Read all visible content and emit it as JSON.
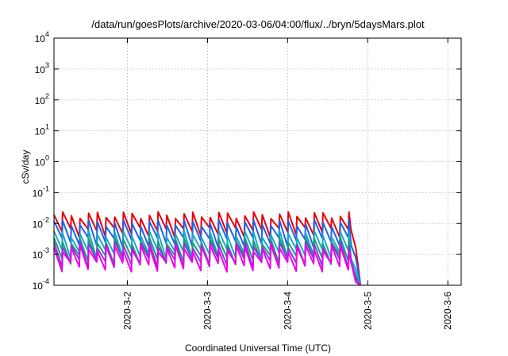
{
  "chart_data": {
    "type": "line",
    "title": "/data/run/goesPlots/archive/2020-03-06/04:00/flux/../bryn/5daysMars.plot",
    "xlabel": "Coordinated Universal Time (UTC)",
    "ylabel": "cSv/day",
    "yscale": "log",
    "ylim": [
      0.0001,
      10000
    ],
    "xlim": [
      "2020-03-01T02:00",
      "2020-03-06T04:00"
    ],
    "grid": true,
    "legend": "none",
    "x_ticks": [
      {
        "date": "2020-03-02",
        "label": "2020-3-2"
      },
      {
        "date": "2020-03-03",
        "label": "2020-3-3"
      },
      {
        "date": "2020-03-04",
        "label": "2020-3-4"
      },
      {
        "date": "2020-03-05",
        "label": "2020-3-5"
      },
      {
        "date": "2020-03-06",
        "label": "2020-3-6"
      }
    ],
    "y_ticks": [
      {
        "base": "10",
        "exp": "-4"
      },
      {
        "base": "10",
        "exp": "-3"
      },
      {
        "base": "10",
        "exp": "-2"
      },
      {
        "base": "10",
        "exp": "-1"
      },
      {
        "base": "10",
        "exp": "0"
      },
      {
        "base": "10",
        "exp": "1"
      },
      {
        "base": "10",
        "exp": "2"
      },
      {
        "base": "10",
        "exp": "3"
      },
      {
        "base": "10",
        "exp": "4"
      }
    ],
    "series": [
      {
        "color": "#e8000b",
        "peak": 0.019,
        "trough": 0.0055
      },
      {
        "color": "#1f62e8",
        "peak": 0.0105,
        "trough": 0.0026
      },
      {
        "color": "#1aa8c8",
        "peak": 0.0046,
        "trough": 0.0011
      },
      {
        "color": "#18a070",
        "peak": 0.0028,
        "trough": 0.0007
      },
      {
        "color": "#8040d0",
        "peak": 0.0021,
        "trough": 0.00055
      },
      {
        "color": "#ee00ee",
        "peak": 0.0016,
        "trough": 0.00042
      }
    ],
    "cycle_hours": 2.6,
    "data_end": "2020-03-04T19:00"
  }
}
